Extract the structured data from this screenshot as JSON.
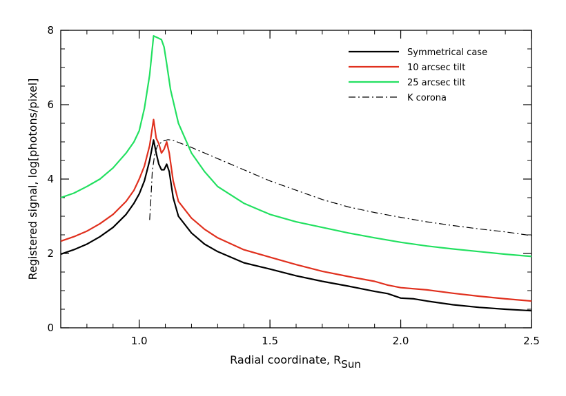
{
  "chart_data": {
    "type": "line",
    "xlabel": "Radial coordinate, R",
    "xlabel_sub": "Sun",
    "ylabel": "Registered signal, log[photons/pixel]",
    "xlim": [
      0.7,
      2.5
    ],
    "ylim": [
      0,
      8
    ],
    "x_ticks": [
      1.0,
      1.5,
      2.0,
      2.5
    ],
    "x_tick_labels": [
      "1.0",
      "1.5",
      "2.0",
      "2.5"
    ],
    "y_ticks": [
      0,
      2,
      4,
      6,
      8
    ],
    "y_tick_labels": [
      "0",
      "2",
      "4",
      "6",
      "8"
    ],
    "grid": false,
    "legend_position": "top-right",
    "series": [
      {
        "name": "Symmetrical case",
        "color": "#000000",
        "dash": "solid",
        "points": [
          [
            0.7,
            1.98
          ],
          [
            0.75,
            2.1
          ],
          [
            0.8,
            2.25
          ],
          [
            0.85,
            2.45
          ],
          [
            0.9,
            2.7
          ],
          [
            0.95,
            3.05
          ],
          [
            0.98,
            3.35
          ],
          [
            1.0,
            3.6
          ],
          [
            1.02,
            3.95
          ],
          [
            1.04,
            4.5
          ],
          [
            1.055,
            5.05
          ],
          [
            1.065,
            4.7
          ],
          [
            1.075,
            4.4
          ],
          [
            1.085,
            4.25
          ],
          [
            1.095,
            4.25
          ],
          [
            1.105,
            4.4
          ],
          [
            1.115,
            4.2
          ],
          [
            1.13,
            3.5
          ],
          [
            1.15,
            3.0
          ],
          [
            1.2,
            2.55
          ],
          [
            1.25,
            2.25
          ],
          [
            1.3,
            2.05
          ],
          [
            1.4,
            1.75
          ],
          [
            1.5,
            1.58
          ],
          [
            1.6,
            1.4
          ],
          [
            1.7,
            1.25
          ],
          [
            1.8,
            1.12
          ],
          [
            1.9,
            0.98
          ],
          [
            1.95,
            0.92
          ],
          [
            2.0,
            0.8
          ],
          [
            2.05,
            0.78
          ],
          [
            2.1,
            0.72
          ],
          [
            2.2,
            0.62
          ],
          [
            2.3,
            0.55
          ],
          [
            2.4,
            0.5
          ],
          [
            2.5,
            0.46
          ]
        ]
      },
      {
        "name": "10 arcsec tilt",
        "color": "#e0301e",
        "dash": "solid",
        "points": [
          [
            0.7,
            2.33
          ],
          [
            0.75,
            2.45
          ],
          [
            0.8,
            2.6
          ],
          [
            0.85,
            2.8
          ],
          [
            0.9,
            3.05
          ],
          [
            0.95,
            3.4
          ],
          [
            0.98,
            3.7
          ],
          [
            1.0,
            4.0
          ],
          [
            1.02,
            4.35
          ],
          [
            1.04,
            4.9
          ],
          [
            1.055,
            5.6
          ],
          [
            1.065,
            5.1
          ],
          [
            1.075,
            4.95
          ],
          [
            1.085,
            4.7
          ],
          [
            1.095,
            4.8
          ],
          [
            1.105,
            5.0
          ],
          [
            1.115,
            4.7
          ],
          [
            1.13,
            3.95
          ],
          [
            1.15,
            3.4
          ],
          [
            1.2,
            2.95
          ],
          [
            1.25,
            2.65
          ],
          [
            1.3,
            2.42
          ],
          [
            1.4,
            2.1
          ],
          [
            1.5,
            1.9
          ],
          [
            1.6,
            1.7
          ],
          [
            1.7,
            1.52
          ],
          [
            1.8,
            1.38
          ],
          [
            1.9,
            1.25
          ],
          [
            1.95,
            1.15
          ],
          [
            2.0,
            1.08
          ],
          [
            2.1,
            1.02
          ],
          [
            2.2,
            0.93
          ],
          [
            2.3,
            0.85
          ],
          [
            2.4,
            0.78
          ],
          [
            2.5,
            0.72
          ]
        ]
      },
      {
        "name": "25 arcsec tilt",
        "color": "#22e060",
        "dash": "solid",
        "points": [
          [
            0.7,
            3.5
          ],
          [
            0.75,
            3.62
          ],
          [
            0.8,
            3.8
          ],
          [
            0.85,
            4.0
          ],
          [
            0.9,
            4.3
          ],
          [
            0.95,
            4.7
          ],
          [
            0.98,
            5.0
          ],
          [
            1.0,
            5.3
          ],
          [
            1.02,
            5.9
          ],
          [
            1.04,
            6.8
          ],
          [
            1.055,
            7.85
          ],
          [
            1.07,
            7.8
          ],
          [
            1.085,
            7.75
          ],
          [
            1.095,
            7.55
          ],
          [
            1.105,
            7.1
          ],
          [
            1.12,
            6.4
          ],
          [
            1.15,
            5.5
          ],
          [
            1.2,
            4.7
          ],
          [
            1.25,
            4.2
          ],
          [
            1.3,
            3.8
          ],
          [
            1.4,
            3.35
          ],
          [
            1.5,
            3.05
          ],
          [
            1.6,
            2.85
          ],
          [
            1.7,
            2.7
          ],
          [
            1.8,
            2.55
          ],
          [
            1.9,
            2.42
          ],
          [
            2.0,
            2.3
          ],
          [
            2.1,
            2.2
          ],
          [
            2.2,
            2.12
          ],
          [
            2.3,
            2.05
          ],
          [
            2.4,
            1.98
          ],
          [
            2.5,
            1.92
          ]
        ]
      },
      {
        "name": "K corona",
        "color": "#000000",
        "dash": "dashdot",
        "points": [
          [
            1.04,
            2.9
          ],
          [
            1.045,
            3.5
          ],
          [
            1.05,
            4.2
          ],
          [
            1.06,
            4.7
          ],
          [
            1.07,
            4.9
          ],
          [
            1.09,
            5.02
          ],
          [
            1.11,
            5.06
          ],
          [
            1.13,
            5.04
          ],
          [
            1.2,
            4.85
          ],
          [
            1.3,
            4.55
          ],
          [
            1.4,
            4.25
          ],
          [
            1.5,
            3.95
          ],
          [
            1.6,
            3.7
          ],
          [
            1.7,
            3.45
          ],
          [
            1.8,
            3.25
          ],
          [
            1.9,
            3.1
          ],
          [
            2.0,
            2.97
          ],
          [
            2.1,
            2.85
          ],
          [
            2.2,
            2.75
          ],
          [
            2.3,
            2.66
          ],
          [
            2.4,
            2.58
          ],
          [
            2.5,
            2.48
          ]
        ]
      }
    ]
  }
}
